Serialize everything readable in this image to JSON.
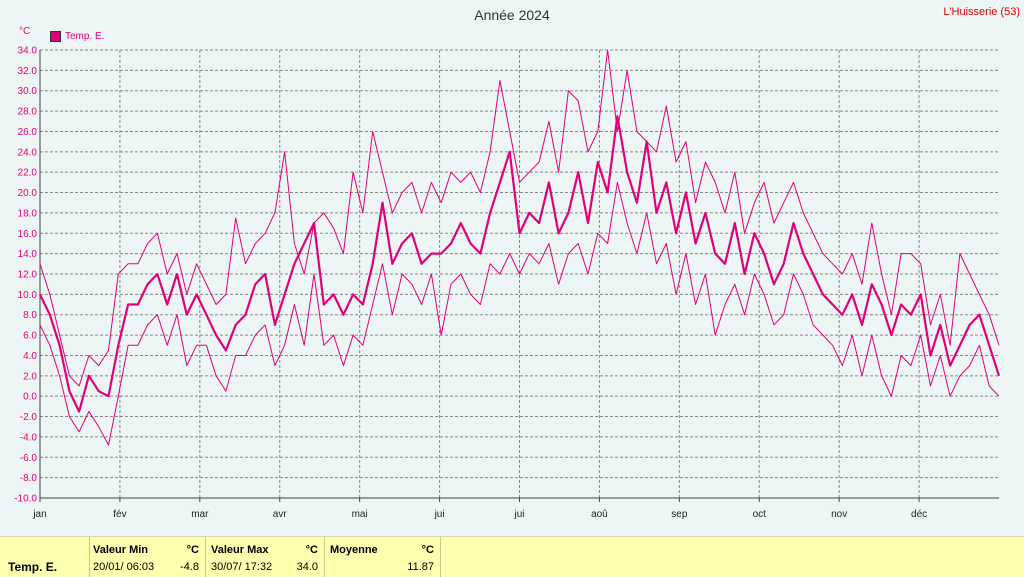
{
  "title": "Année 2024",
  "station": "L'Huisserie (53)",
  "unit": "°C",
  "legend": {
    "label": "Temp. E.",
    "color": "#e2007a"
  },
  "colors": {
    "series": "#e2007a",
    "grid": "#888888",
    "axis": "#444444",
    "background": "#eef5f5",
    "stats_bg": "#ffffb0"
  },
  "stats": {
    "series": "Temp. E.",
    "min": {
      "header": "Valeur Min",
      "unit": "°C",
      "date": "20/01/  06:03",
      "value": "-4.8"
    },
    "max": {
      "header": "Valeur Max",
      "unit": "°C",
      "date": "30/07/  17:32",
      "value": "34.0"
    },
    "mean": {
      "header": "Moyenne",
      "unit": "°C",
      "value": "11.87"
    }
  },
  "chart_data": {
    "type": "line",
    "title": "Année 2024",
    "ylabel": "°C",
    "ylim": [
      -10,
      34
    ],
    "yticks": [
      "-10.0",
      "-8.0",
      "-6.0",
      "-4.0",
      "-2.0",
      "0.0",
      "2.0",
      "4.0",
      "6.0",
      "8.0",
      "10.0",
      "12.0",
      "14.0",
      "16.0",
      "18.0",
      "20.0",
      "22.0",
      "24.0",
      "26.0",
      "28.0",
      "30.0",
      "32.0",
      "34.0"
    ],
    "categories": [
      "jan",
      "fév",
      "mar",
      "avr",
      "mai",
      "jui",
      "jui",
      "aoû",
      "sep",
      "oct",
      "nov",
      "déc"
    ],
    "grid": true,
    "legend_position": "top-left",
    "series": [
      {
        "name": "Temp. E.",
        "mean": [
          10.0,
          8.0,
          5.0,
          0.5,
          -1.5,
          2.0,
          0.5,
          0.0,
          5.0,
          9.0,
          9.0,
          11.0,
          12.0,
          9.0,
          12.0,
          8.0,
          10.0,
          8.0,
          6.0,
          4.5,
          7.0,
          8.0,
          11.0,
          12.0,
          7.0,
          10.0,
          13.0,
          15.0,
          17.0,
          9.0,
          10.0,
          8.0,
          10.0,
          9.0,
          13.0,
          19.0,
          13.0,
          15.0,
          16.0,
          13.0,
          14.0,
          14.0,
          15.0,
          17.0,
          15.0,
          14.0,
          18.0,
          21.0,
          24.0,
          16.0,
          18.0,
          17.0,
          21.0,
          16.0,
          18.0,
          22.0,
          17.0,
          23.0,
          20.0,
          27.5,
          22.0,
          19.0,
          25.0,
          18.0,
          21.0,
          16.0,
          20.0,
          15.0,
          18.0,
          14.0,
          13.0,
          17.0,
          12.0,
          16.0,
          14.0,
          11.0,
          13.0,
          17.0,
          14.0,
          12.0,
          10.0,
          9.0,
          8.0,
          10.0,
          7.0,
          11.0,
          9.0,
          6.0,
          9.0,
          8.0,
          10.0,
          4.0,
          7.0,
          3.0,
          5.0,
          7.0,
          8.0,
          5.0,
          2.0
        ],
        "max": [
          13.0,
          10.0,
          6.0,
          2.0,
          1.0,
          4.0,
          3.0,
          4.5,
          12.0,
          13.0,
          13.0,
          15.0,
          16.0,
          12.0,
          14.0,
          10.0,
          13.0,
          11.0,
          9.0,
          10.0,
          17.5,
          13.0,
          15.0,
          16.0,
          18.0,
          24.0,
          15.0,
          12.0,
          17.0,
          18.0,
          16.5,
          14.0,
          22.0,
          18.0,
          26.0,
          22.0,
          18.0,
          20.0,
          21.0,
          18.0,
          21.0,
          19.0,
          22.0,
          21.0,
          22.0,
          20.0,
          24.0,
          31.0,
          26.0,
          21.0,
          22.0,
          23.0,
          27.0,
          22.0,
          30.0,
          29.0,
          24.0,
          26.0,
          34.0,
          26.0,
          32.0,
          26.0,
          25.0,
          24.0,
          28.5,
          23.0,
          25.0,
          19.0,
          23.0,
          21.0,
          18.0,
          22.0,
          16.0,
          19.0,
          21.0,
          17.0,
          19.0,
          21.0,
          18.0,
          16.0,
          14.0,
          13.0,
          12.0,
          14.0,
          11.0,
          17.0,
          12.0,
          8.0,
          14.0,
          14.0,
          13.0,
          7.0,
          10.0,
          5.0,
          14.0,
          12.0,
          10.0,
          8.0,
          5.0
        ],
        "min": [
          7.0,
          5.0,
          2.0,
          -2.0,
          -3.5,
          -1.5,
          -3.0,
          -4.8,
          0.0,
          5.0,
          5.0,
          7.0,
          8.0,
          5.0,
          8.0,
          3.0,
          5.0,
          5.0,
          2.0,
          0.5,
          4.0,
          4.0,
          6.0,
          7.0,
          3.0,
          5.0,
          9.0,
          5.0,
          12.0,
          5.0,
          6.0,
          3.0,
          6.0,
          5.0,
          9.0,
          13.0,
          8.0,
          12.0,
          11.0,
          9.0,
          12.0,
          6.0,
          11.0,
          12.0,
          10.0,
          9.0,
          13.0,
          12.0,
          14.0,
          12.0,
          14.0,
          13.0,
          15.0,
          11.0,
          14.0,
          15.0,
          12.0,
          16.0,
          15.0,
          21.0,
          17.0,
          14.0,
          18.0,
          13.0,
          15.0,
          10.0,
          14.0,
          9.0,
          12.0,
          6.0,
          9.0,
          11.0,
          8.0,
          12.0,
          10.0,
          7.0,
          8.0,
          12.0,
          10.0,
          7.0,
          6.0,
          5.0,
          3.0,
          6.0,
          2.0,
          6.0,
          2.0,
          0.0,
          4.0,
          3.0,
          6.0,
          1.0,
          4.0,
          0.0,
          2.0,
          3.0,
          5.0,
          1.0,
          0.0
        ]
      }
    ]
  }
}
